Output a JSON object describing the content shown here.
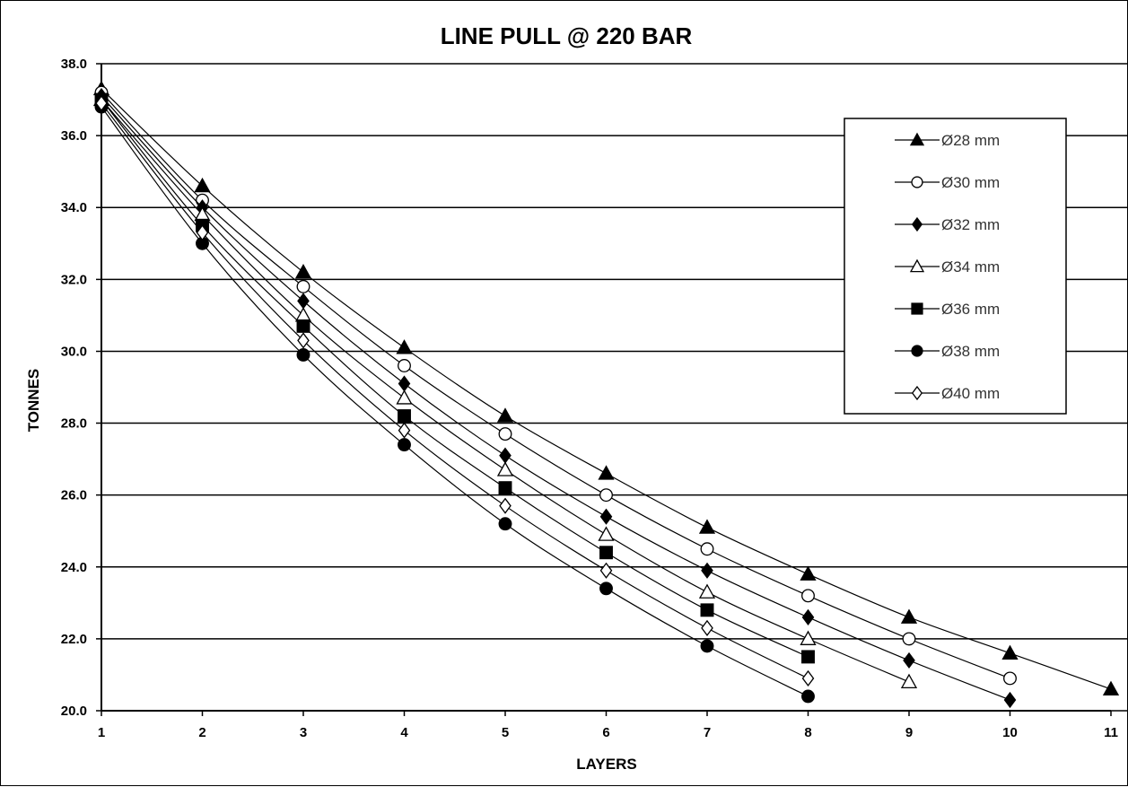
{
  "chart_data": {
    "type": "line",
    "title": "LINE PULL @ 220 BAR",
    "xlabel": "LAYERS",
    "ylabel": "TONNES",
    "xlim": [
      1,
      11
    ],
    "ylim": [
      20.0,
      38.0
    ],
    "x_ticks": [
      1,
      2,
      3,
      4,
      5,
      6,
      7,
      8,
      9,
      10,
      11
    ],
    "y_ticks": [
      "20.0",
      "22.0",
      "24.0",
      "26.0",
      "28.0",
      "30.0",
      "32.0",
      "34.0",
      "36.0",
      "38.0"
    ],
    "grid": "horizontal",
    "legend_position": "right",
    "series": [
      {
        "name": "Ø28 mm",
        "marker": "filled-triangle",
        "x": [
          1,
          2,
          3,
          4,
          5,
          6,
          7,
          8,
          9,
          10,
          11
        ],
        "y": [
          37.3,
          34.6,
          32.2,
          30.1,
          28.2,
          26.6,
          25.1,
          23.8,
          22.6,
          21.6,
          20.6
        ]
      },
      {
        "name": "Ø30 mm",
        "marker": "open-circle",
        "x": [
          1,
          2,
          3,
          4,
          5,
          6,
          7,
          8,
          9,
          10
        ],
        "y": [
          37.2,
          34.2,
          31.8,
          29.6,
          27.7,
          26.0,
          24.5,
          23.2,
          22.0,
          20.9
        ]
      },
      {
        "name": "Ø32 mm",
        "marker": "filled-diamond",
        "x": [
          1,
          2,
          3,
          4,
          5,
          6,
          7,
          8,
          9,
          10
        ],
        "y": [
          37.1,
          34.0,
          31.4,
          29.1,
          27.1,
          25.4,
          23.9,
          22.6,
          21.4,
          20.3
        ]
      },
      {
        "name": "Ø34 mm",
        "marker": "open-triangle",
        "x": [
          1,
          2,
          3,
          4,
          5,
          6,
          7,
          8,
          9
        ],
        "y": [
          37.0,
          33.8,
          31.0,
          28.7,
          26.7,
          24.9,
          23.3,
          22.0,
          20.8
        ]
      },
      {
        "name": "Ø36 mm",
        "marker": "filled-square",
        "x": [
          1,
          2,
          3,
          4,
          5,
          6,
          7,
          8
        ],
        "y": [
          37.0,
          33.5,
          30.7,
          28.2,
          26.2,
          24.4,
          22.8,
          21.5
        ]
      },
      {
        "name": "Ø38 mm",
        "marker": "filled-circle",
        "x": [
          1,
          2,
          3,
          4,
          5,
          6,
          7,
          8
        ],
        "y": [
          36.8,
          33.0,
          29.9,
          27.4,
          25.2,
          23.4,
          21.8,
          20.4
        ]
      },
      {
        "name": "Ø40 mm",
        "marker": "open-diamond",
        "x": [
          1,
          2,
          3,
          4,
          5,
          6,
          7,
          8
        ],
        "y": [
          36.9,
          33.3,
          30.3,
          27.8,
          25.7,
          23.9,
          22.3,
          20.9
        ]
      }
    ]
  },
  "colors": {
    "line": "#000000",
    "grid": "#000000",
    "background": "#ffffff"
  }
}
